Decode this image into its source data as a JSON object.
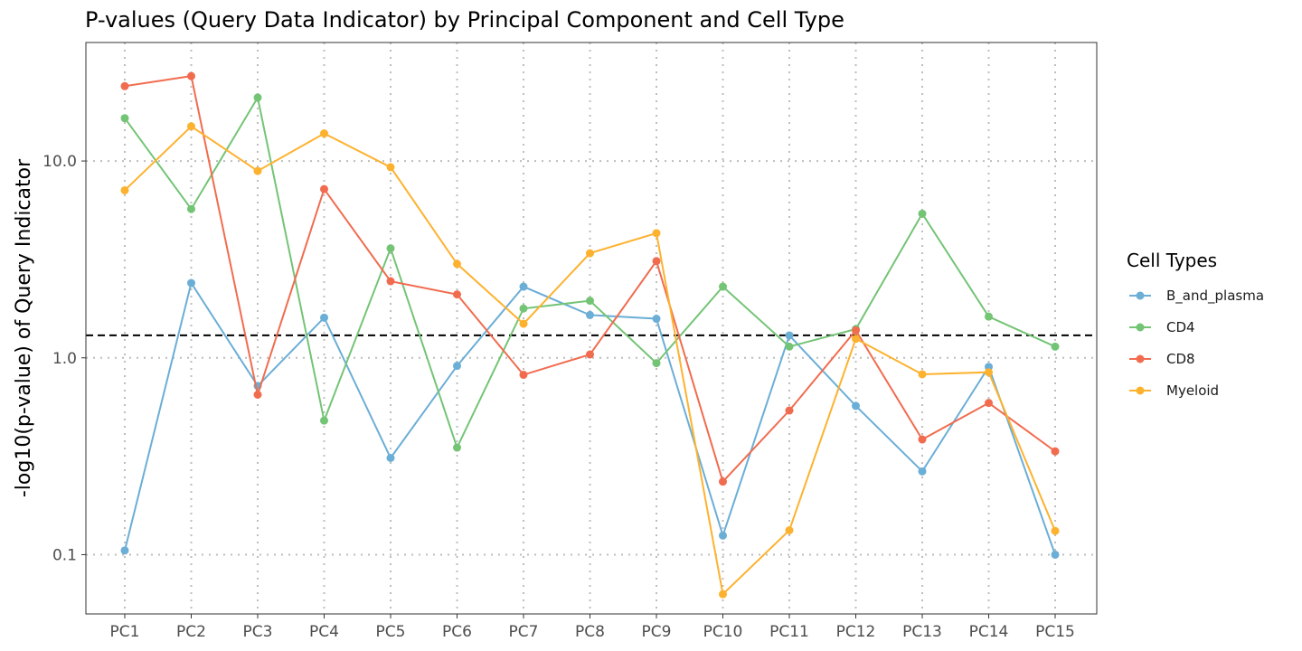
{
  "chart_data": {
    "type": "line",
    "title": "P-values (Query Data Indicator) by Principal Component and Cell Type",
    "xlabel": "",
    "ylabel": "-log10(p-value) of Query Indicator",
    "y_scale": "log10",
    "ylim": [
      0.05,
      40
    ],
    "y_ticks": [
      0.1,
      1.0,
      10.0
    ],
    "y_tick_labels": [
      "0.1",
      "1.0",
      "10.0"
    ],
    "grid": true,
    "grid_style": "dotted",
    "reference_line": {
      "y": 1.301,
      "style": "dashed",
      "color": "#000000"
    },
    "legend": {
      "title": "Cell Types",
      "position": "right"
    },
    "categories": [
      "PC1",
      "PC2",
      "PC3",
      "PC4",
      "PC5",
      "PC6",
      "PC7",
      "PC8",
      "PC9",
      "PC10",
      "PC11",
      "PC12",
      "PC13",
      "PC14",
      "PC15"
    ],
    "series": [
      {
        "name": "B_and_plasma",
        "color": "#6baed6",
        "values": [
          0.105,
          2.4,
          0.72,
          1.6,
          0.31,
          0.91,
          2.3,
          1.65,
          1.58,
          0.125,
          1.3,
          0.57,
          0.265,
          0.9,
          0.1
        ]
      },
      {
        "name": "CD4",
        "color": "#74c476",
        "values": [
          16.5,
          5.7,
          21,
          0.48,
          3.6,
          0.35,
          1.78,
          1.95,
          0.94,
          2.3,
          1.14,
          1.4,
          5.4,
          1.62,
          1.14
        ]
      },
      {
        "name": "CD8",
        "color": "#f16c4f",
        "values": [
          24,
          27,
          0.65,
          7.2,
          2.45,
          2.1,
          0.82,
          1.04,
          3.1,
          0.235,
          0.54,
          1.38,
          0.385,
          0.59,
          0.335
        ]
      },
      {
        "name": "Myeloid",
        "color": "#fdb22f",
        "values": [
          7.1,
          15,
          8.9,
          13.8,
          9.3,
          3.0,
          1.49,
          3.4,
          4.3,
          0.063,
          0.133,
          1.25,
          0.825,
          0.845,
          0.132
        ]
      }
    ]
  }
}
